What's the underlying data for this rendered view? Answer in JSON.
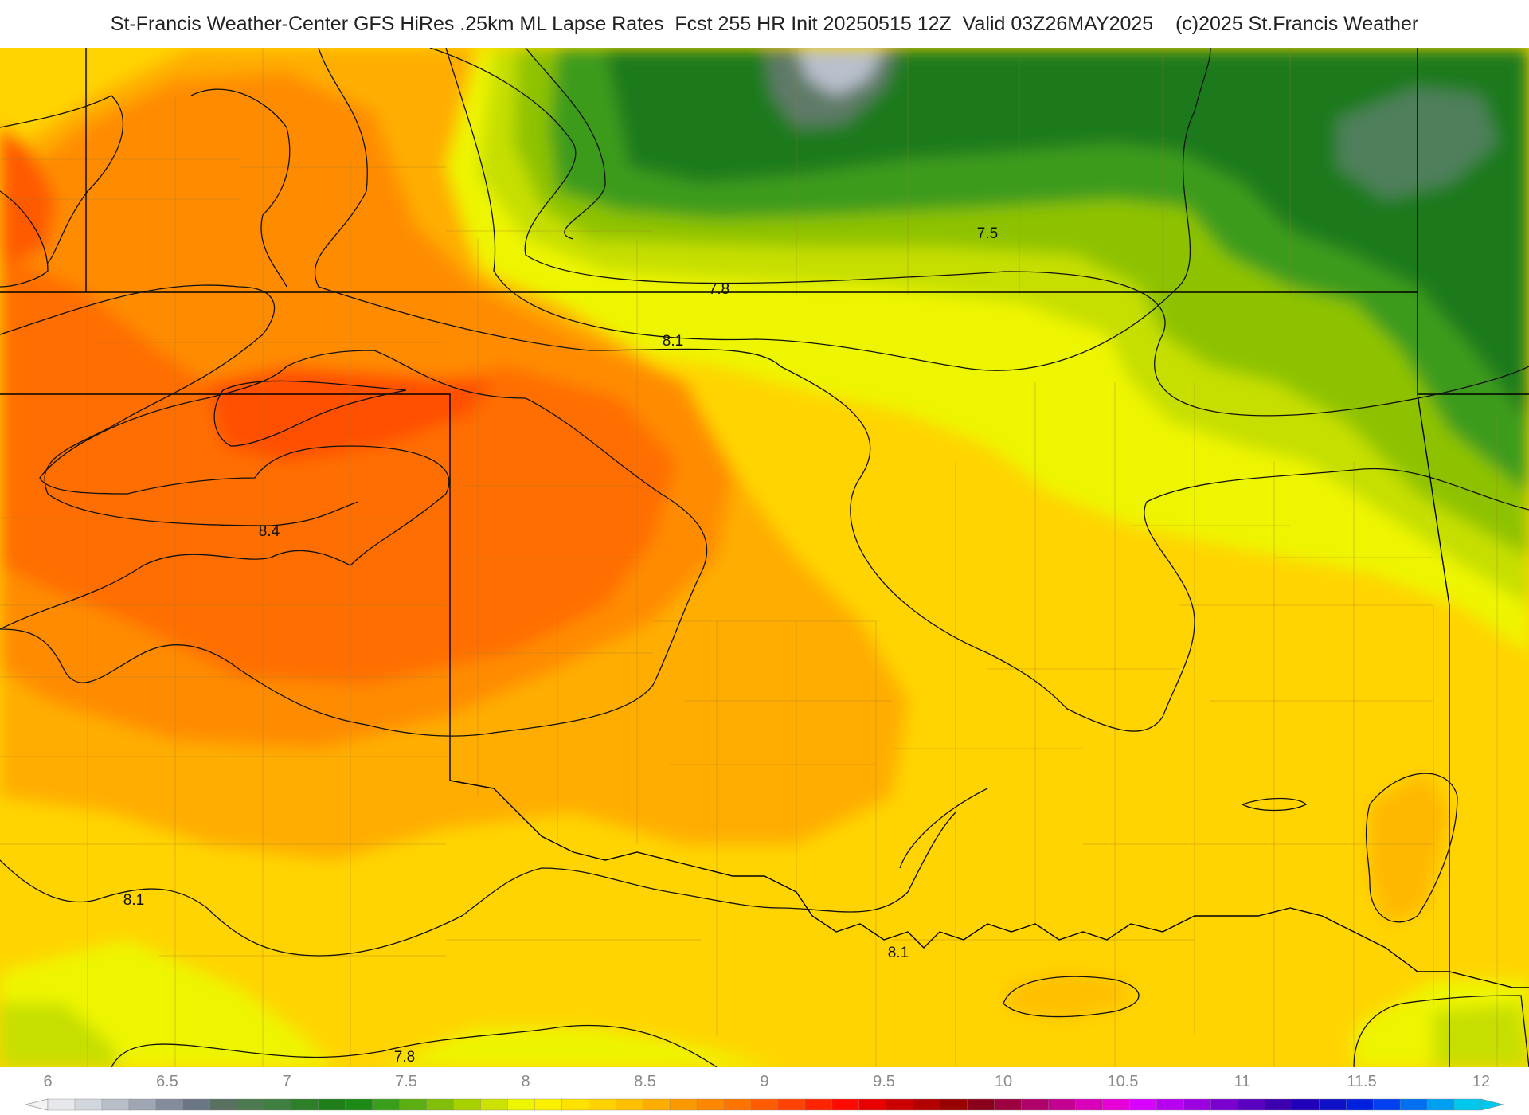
{
  "title": "St-Francis Weather-Center GFS HiRes .25km ML Lapse Rates  Fcst 255 HR Init 20250515 12Z  Valid 03Z26MAY2025    (c)2025 St.Francis Weather",
  "contour_labels": [
    "7.5",
    "7.8",
    "8.1",
    "8.4",
    "8.1",
    "8.1",
    "7.8"
  ],
  "colorbar": {
    "tick_labels": [
      "6",
      "6.5",
      "7",
      "7.5",
      "8",
      "8.5",
      "9",
      "9.5",
      "10",
      "10.5",
      "11",
      "11.5",
      "12"
    ],
    "range": [
      6,
      12
    ],
    "colors": [
      "#e6e8ec",
      "#d2d6dd",
      "#b8bec8",
      "#9ea5b3",
      "#838b9c",
      "#6a7585",
      "#58705f",
      "#4c7a4f",
      "#3f7f3f",
      "#2e7f2a",
      "#1f7d1a",
      "#1c8a17",
      "#3a9e1a",
      "#5caf12",
      "#82bf0b",
      "#a8d100",
      "#cde200",
      "#eef500",
      "#fbf000",
      "#ffe200",
      "#ffd200",
      "#ffc000",
      "#ffad00",
      "#ff9900",
      "#ff8800",
      "#ff7400",
      "#ff5c00",
      "#ff4200",
      "#ff2400",
      "#ff0a00",
      "#e80000",
      "#cc0000",
      "#b30000",
      "#990000",
      "#8a001a",
      "#9c0040",
      "#b0006a",
      "#c40090",
      "#d800b8",
      "#e800d8",
      "#d800ff",
      "#b800f0",
      "#9a00e0",
      "#7a00d0",
      "#5a00c0",
      "#3c00b0",
      "#2000b8",
      "#1010c8",
      "#0020e0",
      "#0040f0",
      "#0070f0",
      "#00a0f0",
      "#00c8ec"
    ]
  }
}
